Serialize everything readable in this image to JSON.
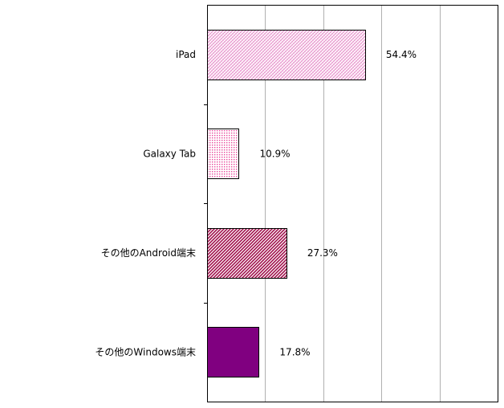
{
  "chart_data": {
    "type": "bar",
    "orientation": "horizontal",
    "categories": [
      "iPad",
      "Galaxy Tab",
      "その他のAndroid端末",
      "その他のWindows端末"
    ],
    "values": [
      54.4,
      10.9,
      27.3,
      17.8
    ],
    "value_labels": [
      "54.4%",
      "10.9%",
      "27.3%",
      "17.8%"
    ],
    "xlim": [
      0,
      100
    ],
    "grid": true,
    "legend": "none",
    "colors": [
      "#f4c4e4",
      "#f080c0",
      "#b03060",
      "#800080"
    ]
  }
}
